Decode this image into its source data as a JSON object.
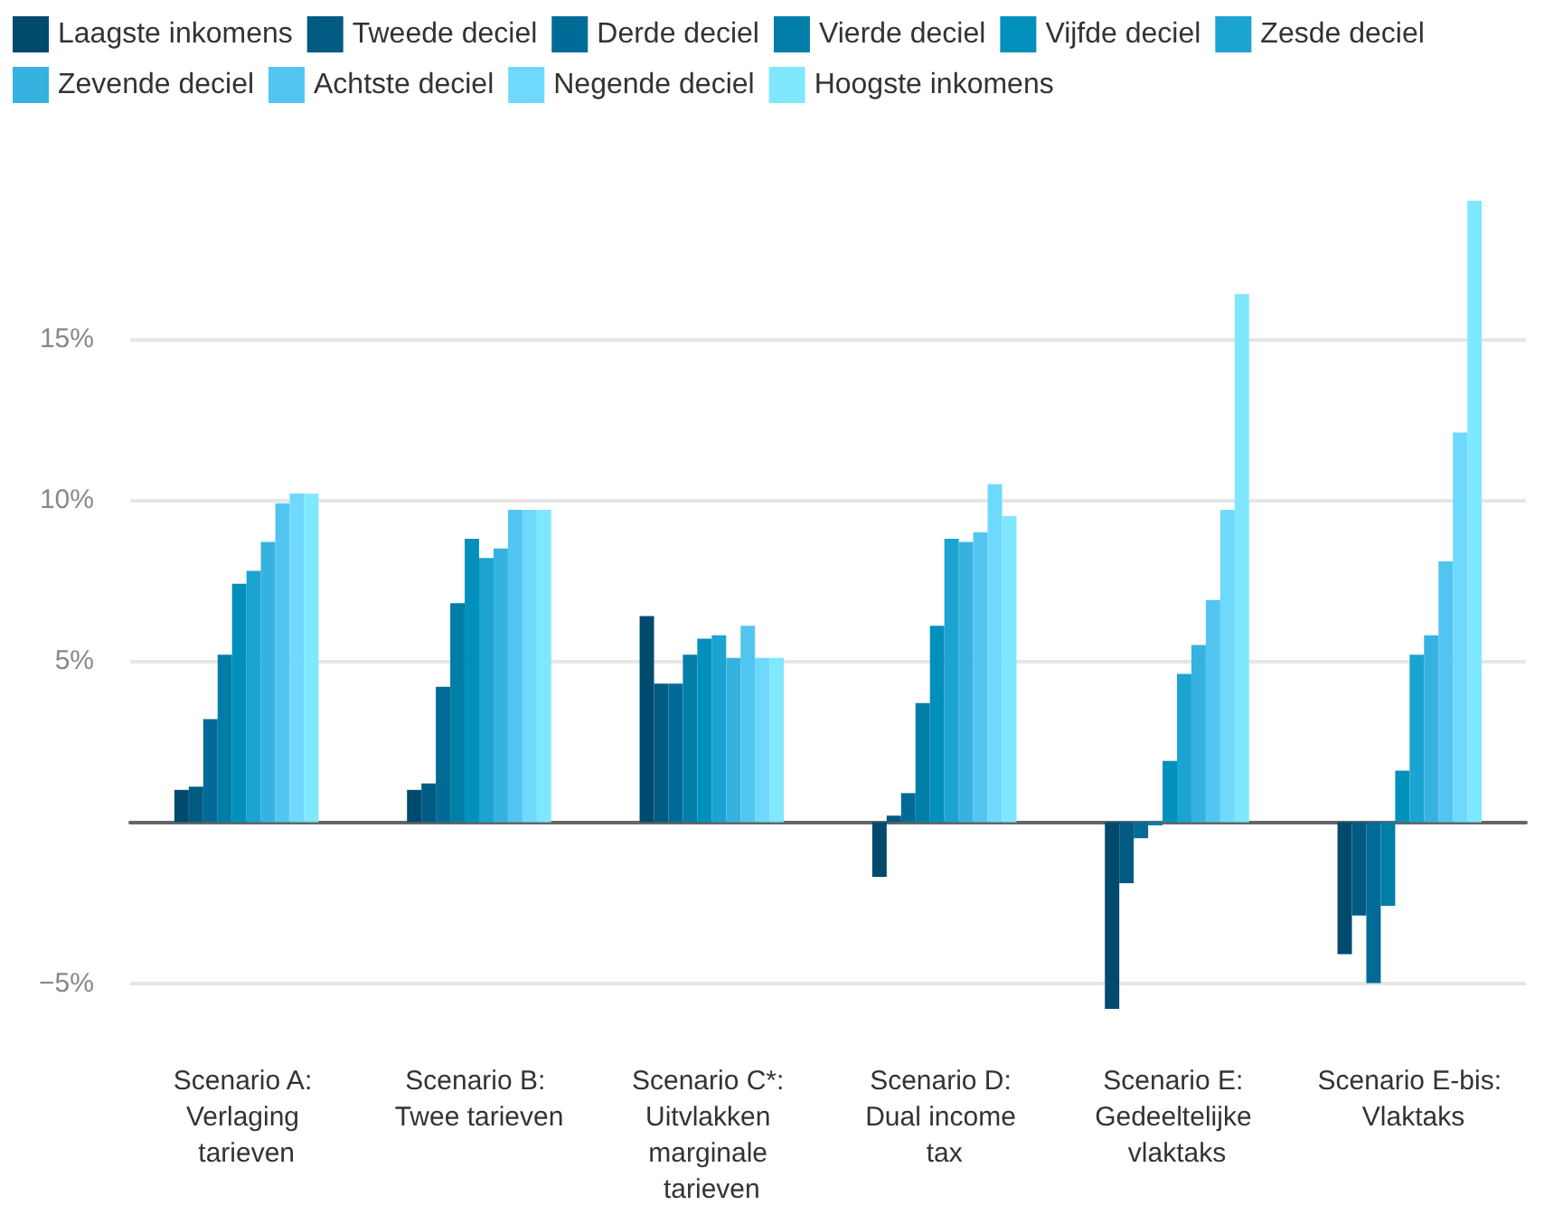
{
  "chart_data": {
    "type": "bar",
    "categories": [
      "Scenario A: Verlaging tarieven",
      "Scenario B: Twee tarieven",
      "Scenario C*: Uitvlakken marginale tarieven",
      "Scenario D: Dual income tax",
      "Scenario E: Gedeeltelijke vlaktaks",
      "Scenario E-bis: Vlaktaks"
    ],
    "series": [
      {
        "name": "Laagste inkomens",
        "color": "#004a6e",
        "values": [
          1.0,
          1.0,
          6.4,
          -1.7,
          -5.8,
          -4.1
        ]
      },
      {
        "name": "Tweede deciel",
        "color": "#005a82",
        "values": [
          1.1,
          1.2,
          4.3,
          0.2,
          -1.9,
          -2.9
        ]
      },
      {
        "name": "Derde deciel",
        "color": "#006b96",
        "values": [
          3.2,
          4.2,
          4.3,
          0.9,
          -0.5,
          -5.0
        ]
      },
      {
        "name": "Vierde deciel",
        "color": "#007ea8",
        "values": [
          5.2,
          6.8,
          5.2,
          3.7,
          -0.1,
          -2.6
        ]
      },
      {
        "name": "Vijfde deciel",
        "color": "#0090bb",
        "values": [
          7.4,
          8.8,
          5.7,
          6.1,
          1.9,
          1.6
        ]
      },
      {
        "name": "Zesde deciel",
        "color": "#1ba3d1",
        "values": [
          7.8,
          8.2,
          5.8,
          8.8,
          4.6,
          5.2
        ]
      },
      {
        "name": "Zevende deciel",
        "color": "#36b2e0",
        "values": [
          8.7,
          8.5,
          5.1,
          8.7,
          5.5,
          5.8
        ]
      },
      {
        "name": "Achtste deciel",
        "color": "#52c5f0",
        "values": [
          9.9,
          9.7,
          6.1,
          9.0,
          6.9,
          8.1
        ]
      },
      {
        "name": "Negende deciel",
        "color": "#6ed8fd",
        "values": [
          10.2,
          9.7,
          5.1,
          10.5,
          9.7,
          12.1
        ]
      },
      {
        "name": "Hoogste inkomens",
        "color": "#7fe8ff",
        "values": [
          10.2,
          9.7,
          5.1,
          9.5,
          16.4,
          19.3
        ]
      }
    ],
    "ylim": [
      -5.8,
      19.3
    ],
    "yticks": [
      {
        "value": -5,
        "label": "−5%"
      },
      {
        "value": 0,
        "label": null
      },
      {
        "value": 5,
        "label": "5%"
      },
      {
        "value": 10,
        "label": "10%"
      },
      {
        "value": 15,
        "label": "15%"
      }
    ],
    "grid": "y",
    "legend": "top left"
  }
}
